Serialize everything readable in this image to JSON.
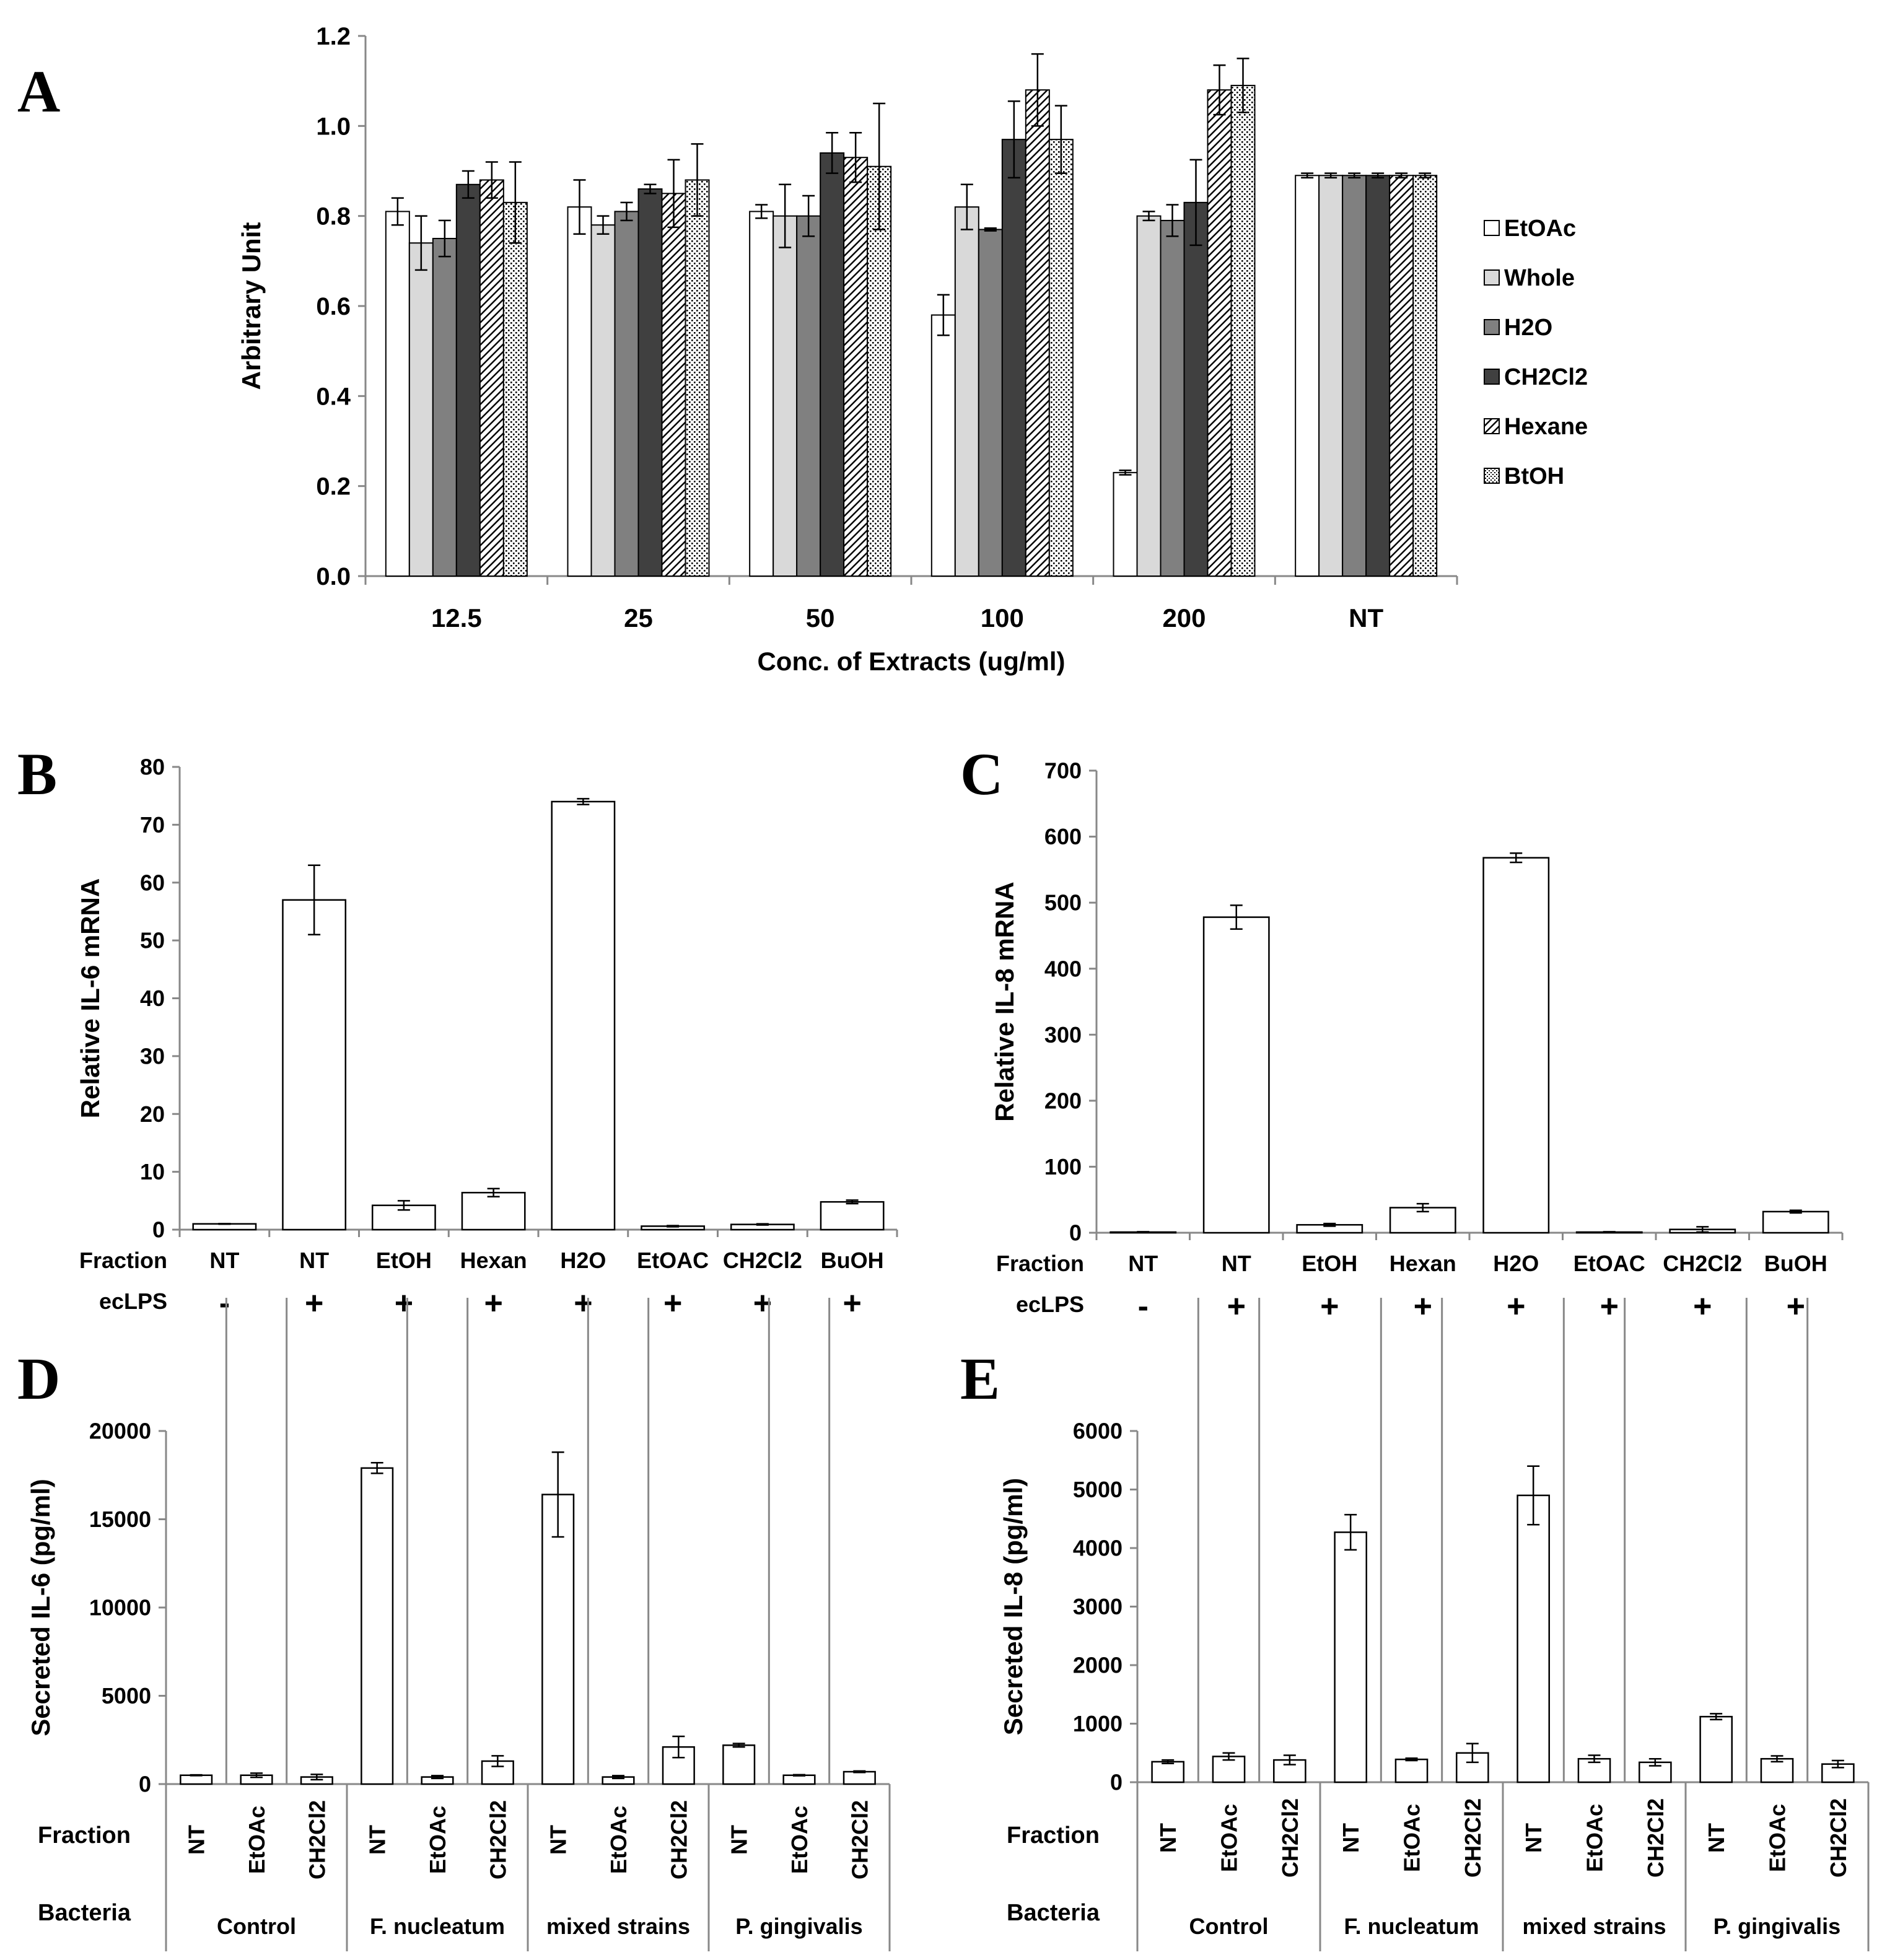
{
  "chart_data": [
    {
      "panel": "A",
      "type": "bar",
      "ylabel": "Arbitrary Unit",
      "xlabel": "Conc. of Extracts  (ug/ml)",
      "ylim": [
        0.0,
        1.2
      ],
      "yticks": [
        "0.0",
        "0.2",
        "0.4",
        "0.6",
        "0.8",
        "1.0",
        "1.2"
      ],
      "categories": [
        "12.5",
        "25",
        "50",
        "100",
        "200",
        "NT"
      ],
      "legend_position": "right",
      "series": [
        {
          "name": "EtOAc",
          "values": [
            0.81,
            0.82,
            0.81,
            0.58,
            0.23,
            0.89
          ],
          "errors": [
            0.03,
            0.06,
            0.015,
            0.045,
            0.005,
            0.005
          ]
        },
        {
          "name": "Whole",
          "values": [
            0.74,
            0.78,
            0.8,
            0.82,
            0.8,
            0.89
          ],
          "errors": [
            0.06,
            0.02,
            0.07,
            0.05,
            0.01,
            0.005
          ]
        },
        {
          "name": "H2O",
          "values": [
            0.75,
            0.81,
            0.8,
            0.77,
            0.79,
            0.89
          ],
          "errors": [
            0.04,
            0.02,
            0.045,
            0.003,
            0.035,
            0.005
          ]
        },
        {
          "name": "CH2Cl2",
          "values": [
            0.87,
            0.86,
            0.94,
            0.97,
            0.83,
            0.89
          ],
          "errors": [
            0.03,
            0.01,
            0.045,
            0.085,
            0.095,
            0.005
          ]
        },
        {
          "name": "Hexane",
          "values": [
            0.88,
            0.85,
            0.93,
            1.08,
            1.08,
            0.89
          ],
          "errors": [
            0.04,
            0.075,
            0.055,
            0.08,
            0.055,
            0.005
          ]
        },
        {
          "name": "BtOH",
          "values": [
            0.83,
            0.88,
            0.91,
            0.97,
            1.09,
            0.89
          ],
          "errors": [
            0.09,
            0.08,
            0.14,
            0.075,
            0.06,
            0.005
          ]
        }
      ]
    },
    {
      "panel": "B",
      "type": "bar",
      "ylabel": "Relative IL-6 mRNA",
      "ylim": [
        0,
        80
      ],
      "yticks": [
        "0",
        "10",
        "20",
        "30",
        "40",
        "50",
        "60",
        "70",
        "80"
      ],
      "row_labels": [
        "Fraction",
        "ecLPS"
      ],
      "categories": [
        "NT",
        "NT",
        "EtOH",
        "Hexan",
        "H2O",
        "EtOAC",
        "CH2Cl2",
        "BuOH"
      ],
      "ecLPS": [
        "-",
        "+",
        "+",
        "+",
        "+",
        "+",
        "+",
        "+"
      ],
      "values": [
        1.0,
        57.0,
        4.2,
        6.4,
        74.0,
        0.6,
        0.9,
        4.8
      ],
      "errors": [
        0.05,
        6.0,
        0.8,
        0.7,
        0.5,
        0.1,
        0.1,
        0.3
      ]
    },
    {
      "panel": "C",
      "type": "bar",
      "ylabel": "Relative IL-8 mRNA",
      "ylim": [
        0,
        700
      ],
      "yticks": [
        "0",
        "100",
        "200",
        "300",
        "400",
        "500",
        "600",
        "700"
      ],
      "row_labels": [
        "Fraction",
        "ecLPS"
      ],
      "categories": [
        "NT",
        "NT",
        "EtOH",
        "Hexan",
        "H2O",
        "EtOAC",
        "CH2Cl2",
        "BuOH"
      ],
      "ecLPS": [
        "-",
        "+",
        "+",
        "+",
        "+",
        "+",
        "+",
        "+"
      ],
      "values": [
        1,
        478,
        12,
        38,
        568,
        1,
        5,
        32
      ],
      "errors": [
        0.5,
        18,
        2,
        6,
        7,
        0.5,
        4,
        2
      ]
    },
    {
      "panel": "D",
      "type": "bar",
      "ylabel": "Secreted IL-6 (pg/ml)",
      "ylim": [
        0,
        20000
      ],
      "yticks": [
        "0",
        "5000",
        "10000",
        "15000",
        "20000"
      ],
      "row_labels": [
        "Fraction",
        "Bacteria"
      ],
      "categories": [
        "NT",
        "EtOAc",
        "CH2Cl2",
        "NT",
        "EtOAc",
        "CH2Cl2",
        "NT",
        "EtOAc",
        "CH2Cl2",
        "NT",
        "EtOAc",
        "CH2Cl2"
      ],
      "groups": [
        "Control",
        "F. nucleatum",
        "mixed strains",
        "P. gingivalis"
      ],
      "values": [
        500,
        500,
        400,
        17900,
        400,
        1300,
        16400,
        400,
        2100,
        2200,
        500,
        700
      ],
      "errors": [
        20,
        120,
        150,
        300,
        80,
        300,
        2400,
        80,
        600,
        100,
        30,
        40
      ]
    },
    {
      "panel": "E",
      "type": "bar",
      "ylabel": "Secreted IL-8 (pg/ml)",
      "ylim": [
        0,
        6000
      ],
      "yticks": [
        "0",
        "1000",
        "2000",
        "3000",
        "4000",
        "5000",
        "6000"
      ],
      "row_labels": [
        "Fraction",
        "Bacteria"
      ],
      "categories": [
        "NT",
        "EtOAc",
        "CH2Cl2",
        "NT",
        "EtOAc",
        "CH2Cl2",
        "NT",
        "EtOAc",
        "CH2Cl2",
        "NT",
        "EtOAc",
        "CH2Cl2"
      ],
      "groups": [
        "Control",
        "F. nucleatum",
        "mixed strains",
        "P. gingivalis"
      ],
      "values": [
        350,
        440,
        380,
        4270,
        390,
        500,
        4900,
        400,
        340,
        1120,
        400,
        310
      ],
      "errors": [
        30,
        60,
        80,
        300,
        20,
        160,
        500,
        60,
        60,
        50,
        50,
        60
      ]
    }
  ]
}
